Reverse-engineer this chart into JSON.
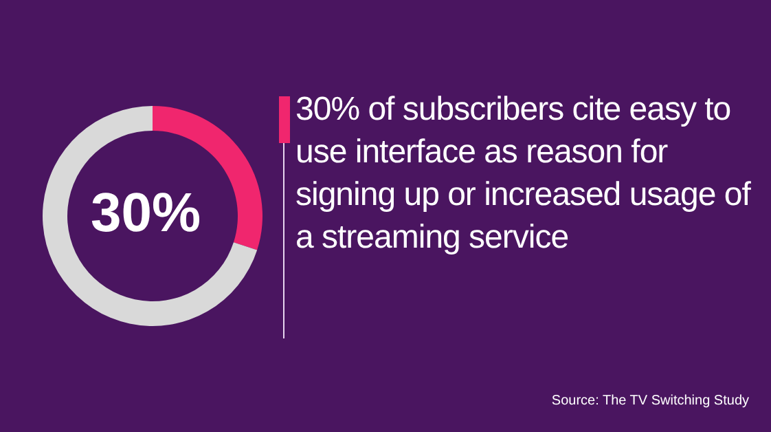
{
  "chart_data": {
    "type": "donut",
    "title": "30% of subscribers cite easy to use interface as reason for signing up or increased usage of a streaming service",
    "categories": [
      null,
      null
    ],
    "values": [
      30,
      70
    ],
    "colors": [
      "#f0266e",
      "#d9d9d9"
    ],
    "annotations": [
      "30%",
      "Source: The TV Switching Study"
    ]
  }
}
